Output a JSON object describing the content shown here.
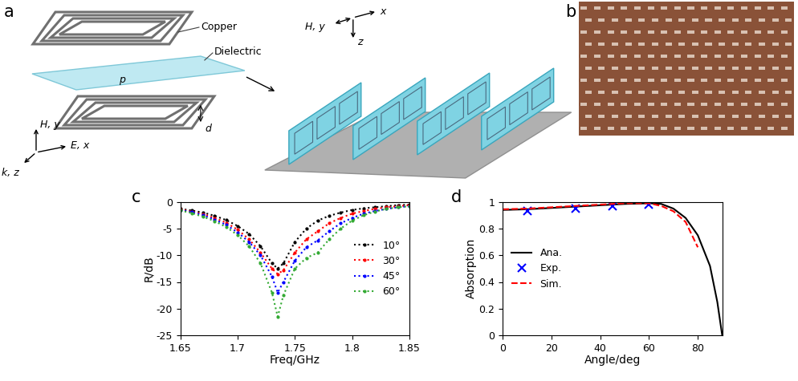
{
  "panel_labels": [
    "a",
    "b",
    "c",
    "d"
  ],
  "diagram": {
    "labels": {
      "copper": "Copper",
      "dielectric": "Dielectric",
      "h_left": "H, y",
      "e": "E, x",
      "k": "k, z",
      "p": "p",
      "d": "d",
      "h_right": "H, y",
      "x_right": "x",
      "z_right": "z"
    }
  },
  "chart_data": [
    {
      "type": "line",
      "x_label": "Freq/GHz",
      "y_label": "R/dB",
      "xlim": [
        1.65,
        1.85
      ],
      "xticks": [
        1.65,
        1.7,
        1.75,
        1.8,
        1.85
      ],
      "ylim": [
        -25,
        0
      ],
      "yticks": [
        -25,
        -20,
        -15,
        -10,
        -5,
        0
      ],
      "grid": false,
      "legend": "center right",
      "series": [
        {
          "name": "10°",
          "color": "#000000",
          "line_style": "dotted",
          "marker": "point",
          "x": [
            1.65,
            1.66,
            1.67,
            1.68,
            1.69,
            1.7,
            1.71,
            1.72,
            1.73,
            1.735,
            1.74,
            1.75,
            1.76,
            1.77,
            1.78,
            1.79,
            1.8,
            1.81,
            1.82,
            1.83,
            1.84,
            1.85
          ],
          "values": [
            -1.3,
            -1.6,
            -2.0,
            -2.6,
            -3.4,
            -4.5,
            -6.0,
            -8.3,
            -11.5,
            -12.5,
            -11.5,
            -7.5,
            -5.0,
            -3.5,
            -2.6,
            -2.0,
            -1.5,
            -1.2,
            -1.0,
            -0.8,
            -0.6,
            -0.5
          ]
        },
        {
          "name": "30°",
          "color": "#ff0000",
          "line_style": "dotted",
          "marker": "point",
          "x": [
            1.65,
            1.66,
            1.67,
            1.68,
            1.69,
            1.7,
            1.71,
            1.72,
            1.73,
            1.735,
            1.74,
            1.75,
            1.76,
            1.77,
            1.78,
            1.79,
            1.8,
            1.81,
            1.82,
            1.83,
            1.84,
            1.85
          ],
          "values": [
            -1.4,
            -1.8,
            -2.3,
            -3.0,
            -3.9,
            -5.2,
            -7.0,
            -9.5,
            -12.5,
            -13.5,
            -12.8,
            -9.5,
            -7.0,
            -5.5,
            -4.0,
            -3.0,
            -2.2,
            -1.7,
            -1.3,
            -1.0,
            -0.8,
            -0.6
          ]
        },
        {
          "name": "45°",
          "color": "#0000ff",
          "line_style": "dotted",
          "marker": "point",
          "x": [
            1.65,
            1.66,
            1.67,
            1.68,
            1.69,
            1.7,
            1.71,
            1.72,
            1.73,
            1.735,
            1.74,
            1.75,
            1.76,
            1.77,
            1.78,
            1.79,
            1.8,
            1.81,
            1.82,
            1.83,
            1.84,
            1.85
          ],
          "values": [
            -1.5,
            -1.9,
            -2.5,
            -3.3,
            -4.3,
            -5.7,
            -7.5,
            -10.0,
            -14.0,
            -17.0,
            -15.0,
            -11.0,
            -8.5,
            -7.2,
            -5.5,
            -4.0,
            -3.0,
            -2.2,
            -1.7,
            -1.3,
            -1.0,
            -0.8
          ]
        },
        {
          "name": "60°",
          "color": "#33aa33",
          "line_style": "dotted",
          "marker": "point",
          "x": [
            1.65,
            1.66,
            1.67,
            1.68,
            1.69,
            1.7,
            1.71,
            1.72,
            1.73,
            1.735,
            1.74,
            1.75,
            1.76,
            1.77,
            1.78,
            1.79,
            1.8,
            1.81,
            1.82,
            1.83,
            1.84,
            1.85
          ],
          "values": [
            -1.6,
            -2.1,
            -2.8,
            -3.6,
            -4.7,
            -6.2,
            -8.3,
            -11.5,
            -17.0,
            -21.5,
            -17.5,
            -12.5,
            -10.5,
            -9.5,
            -7.0,
            -5.0,
            -3.5,
            -2.5,
            -1.8,
            -1.3,
            -1.0,
            -0.8
          ]
        }
      ]
    },
    {
      "type": "line",
      "x_label": "Angle/deg",
      "y_label": "Absorption",
      "xlim": [
        0,
        90
      ],
      "xticks": [
        0,
        20,
        40,
        60,
        80
      ],
      "ylim": [
        0,
        1
      ],
      "yticks": [
        0,
        0.2,
        0.4,
        0.6,
        0.8,
        1
      ],
      "grid": false,
      "legend": "center left",
      "series": [
        {
          "name": "Ana.",
          "color": "#000000",
          "type": "line",
          "line_style": "solid",
          "marker": "none",
          "x": [
            0,
            10,
            20,
            30,
            40,
            50,
            60,
            65,
            70,
            75,
            80,
            85,
            88,
            90
          ],
          "values": [
            0.94,
            0.945,
            0.955,
            0.965,
            0.975,
            0.985,
            0.99,
            0.985,
            0.95,
            0.88,
            0.75,
            0.52,
            0.25,
            0
          ]
        },
        {
          "name": "Exp.",
          "color": "#0000ff",
          "type": "scatter",
          "line_style": "none",
          "marker": "x",
          "x": [
            10,
            30,
            45,
            60
          ],
          "values": [
            0.93,
            0.95,
            0.97,
            0.98
          ]
        },
        {
          "name": "Sim.",
          "color": "#ff0000",
          "type": "line",
          "line_style": "dashed",
          "marker": "none",
          "x": [
            0,
            10,
            20,
            30,
            40,
            50,
            60,
            65,
            70,
            75,
            80
          ],
          "values": [
            0.945,
            0.95,
            0.96,
            0.97,
            0.98,
            0.99,
            0.99,
            0.97,
            0.93,
            0.85,
            0.66
          ]
        }
      ]
    }
  ]
}
